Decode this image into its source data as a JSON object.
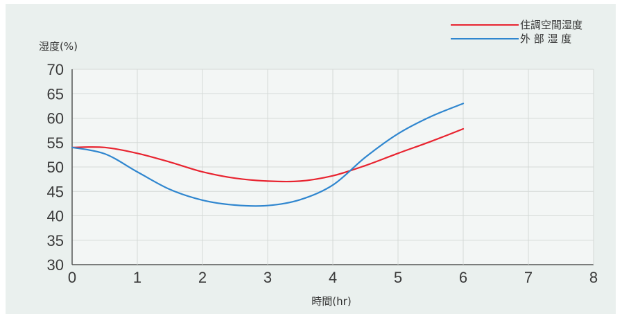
{
  "chart_data": {
    "type": "line",
    "title": "",
    "ylabel": "湿度(%)",
    "xlabel": "時間(hr)",
    "xlim": [
      0,
      8
    ],
    "ylim": [
      30,
      70
    ],
    "x_ticks": [
      "0",
      "1",
      "2",
      "3",
      "4",
      "5",
      "6",
      "7",
      "8"
    ],
    "y_ticks": [
      "30",
      "35",
      "40",
      "45",
      "50",
      "55",
      "60",
      "65",
      "70"
    ],
    "grid": true,
    "legend_position": "top-right",
    "series": [
      {
        "name": "住調空間湿度",
        "color": "#e8232f",
        "points": [
          [
            0,
            54
          ],
          [
            0.5,
            54
          ],
          [
            1,
            52.8
          ],
          [
            1.5,
            51
          ],
          [
            2,
            49
          ],
          [
            2.5,
            47.7
          ],
          [
            3,
            47.1
          ],
          [
            3.5,
            47.1
          ],
          [
            4,
            48.2
          ],
          [
            4.5,
            50.3
          ],
          [
            5,
            52.8
          ],
          [
            5.5,
            55.2
          ],
          [
            6,
            57.8
          ]
        ]
      },
      {
        "name": "外 部 湿 度",
        "color": "#2f86cf",
        "points": [
          [
            0,
            54
          ],
          [
            0.5,
            52.7
          ],
          [
            1,
            49
          ],
          [
            1.5,
            45.4
          ],
          [
            2,
            43.2
          ],
          [
            2.5,
            42.2
          ],
          [
            3,
            42.1
          ],
          [
            3.5,
            43.3
          ],
          [
            4,
            46.3
          ],
          [
            4.5,
            52
          ],
          [
            5,
            56.8
          ],
          [
            5.5,
            60.3
          ],
          [
            6,
            63
          ]
        ]
      }
    ]
  }
}
